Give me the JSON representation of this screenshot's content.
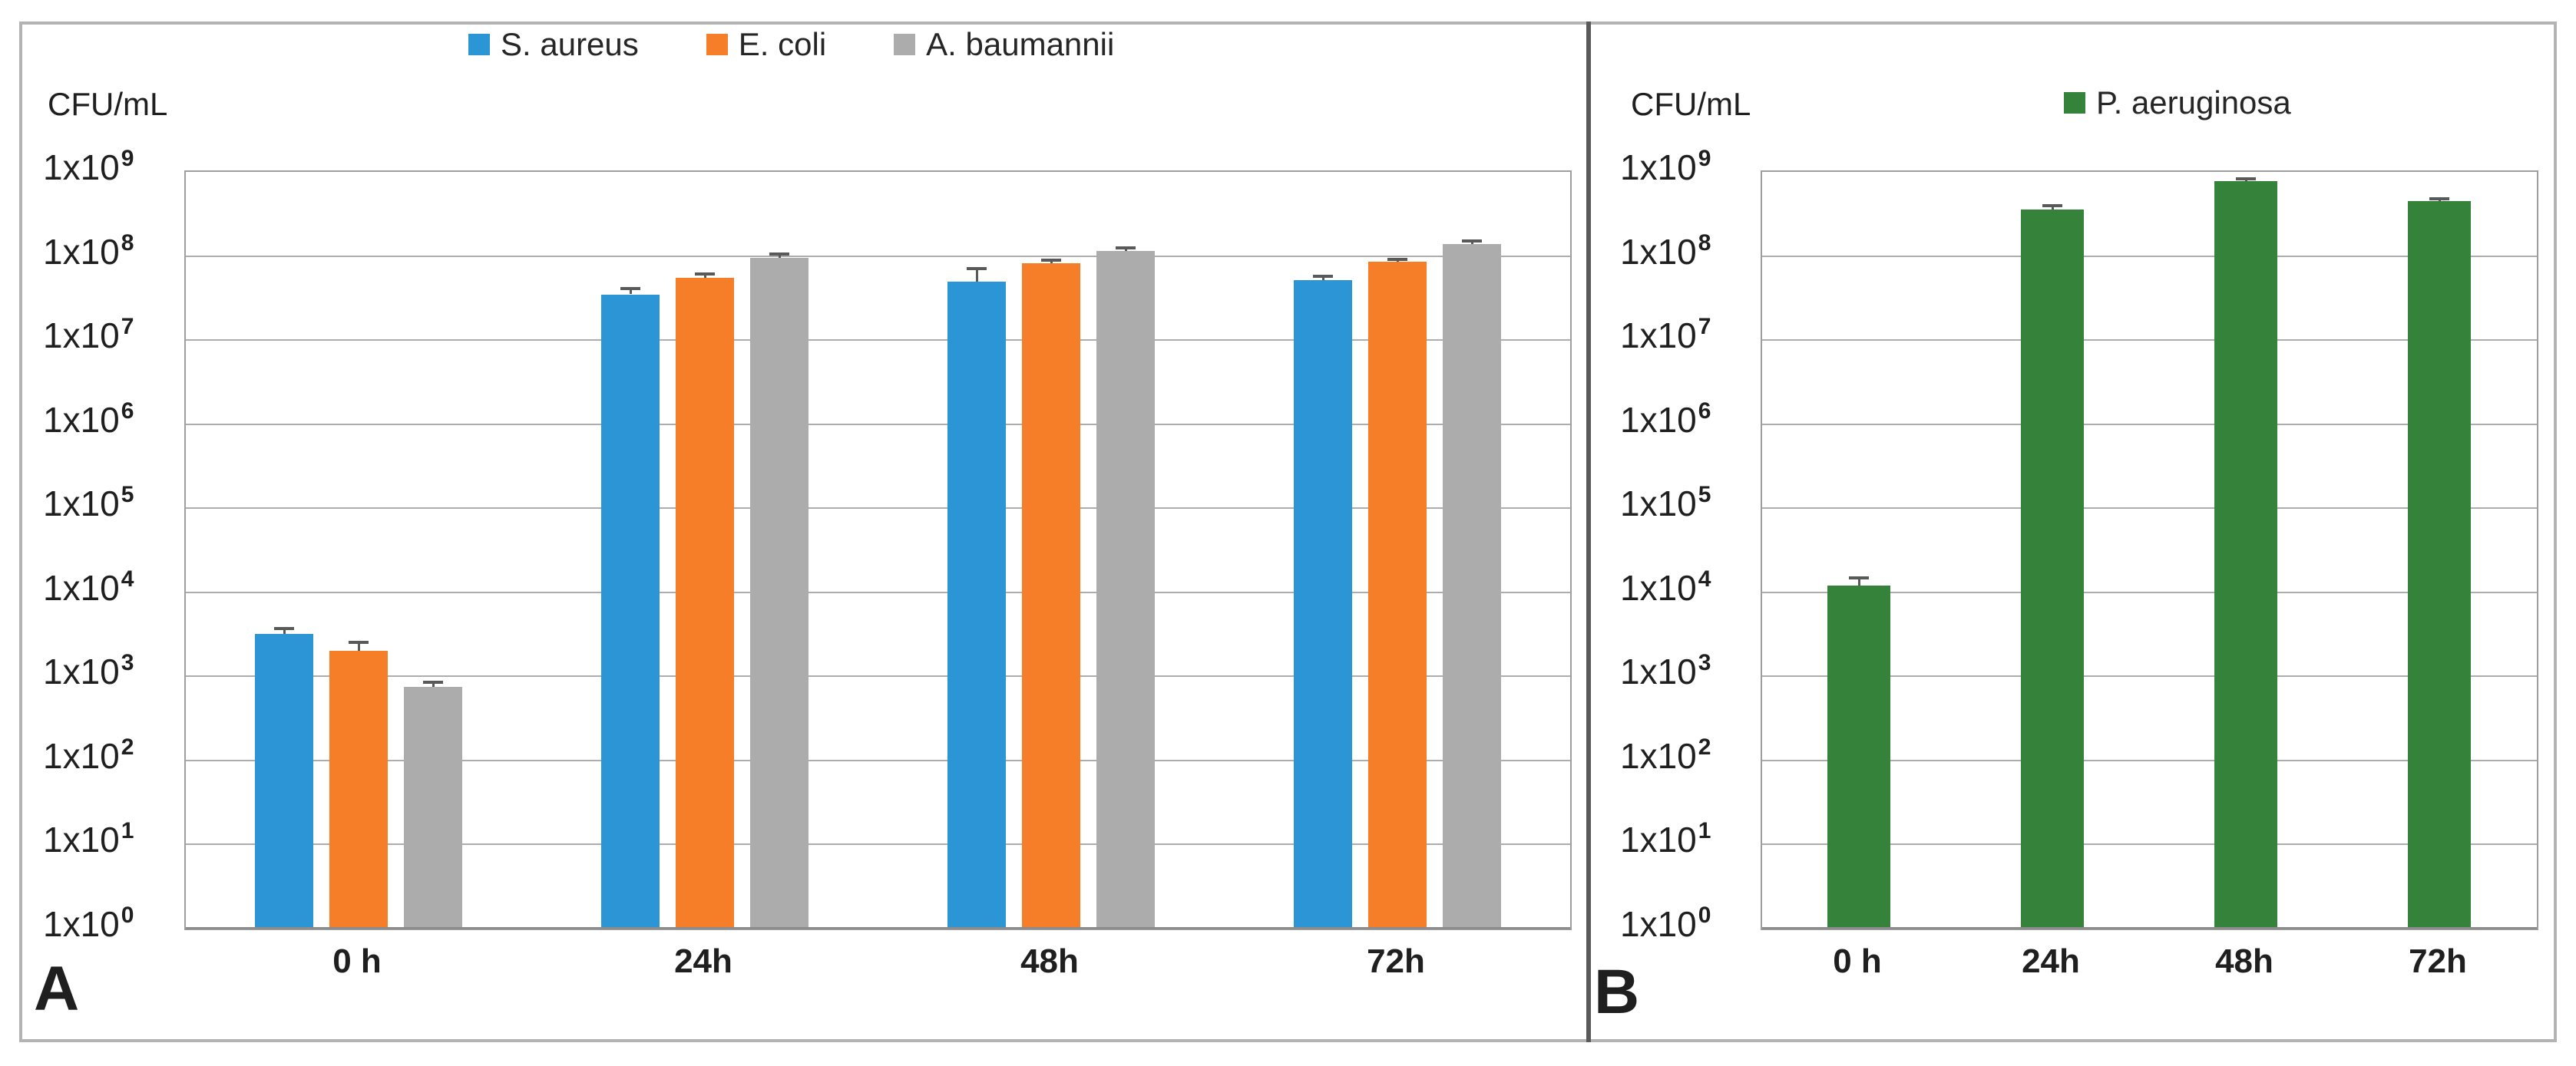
{
  "chart_data": [
    {
      "type": "bar",
      "panel_letter": "A",
      "title": "",
      "ylabel": "CFU/mL",
      "xlabel": "",
      "yscale": "log",
      "ylim": [
        1,
        1000000000
      ],
      "grid": true,
      "legend_position": "top-center",
      "ytick_base": "1x10",
      "ytick_exponents": [
        9,
        8,
        7,
        6,
        5,
        4,
        3,
        2,
        1,
        0
      ],
      "categories": [
        "0 h",
        "24h",
        "48h",
        "72h"
      ],
      "series": [
        {
          "name": "S. aureus",
          "color": "#2b95d6",
          "values": [
            3200,
            35000000,
            50000000,
            52000000
          ],
          "err_upper": [
            3600,
            40000000,
            70000000,
            56000000
          ]
        },
        {
          "name": "E. coli",
          "color": "#f67e28",
          "values": [
            2000,
            55000000,
            82000000,
            85000000
          ],
          "err_upper": [
            2500,
            60000000,
            88000000,
            90000000
          ]
        },
        {
          "name": "A. baumannii",
          "color": "#acacac",
          "values": [
            750,
            95000000,
            115000000,
            140000000
          ],
          "err_upper": [
            830,
            103000000,
            123000000,
            148000000
          ]
        }
      ]
    },
    {
      "type": "bar",
      "panel_letter": "B",
      "title": "",
      "ylabel": "CFU/mL",
      "xlabel": "",
      "yscale": "log",
      "ylim": [
        1,
        1000000000
      ],
      "grid": true,
      "legend_position": "top-center",
      "ytick_base": "1x10",
      "ytick_exponents": [
        9,
        8,
        7,
        6,
        5,
        4,
        3,
        2,
        1,
        0
      ],
      "categories": [
        "0 h",
        "24h",
        "48h",
        "72h"
      ],
      "series": [
        {
          "name": "P. aeruginosa",
          "color": "#35823a",
          "values": [
            12000,
            360000000,
            780000000,
            450000000
          ],
          "err_upper": [
            14500,
            390000000,
            810000000,
            470000000
          ]
        }
      ]
    }
  ]
}
